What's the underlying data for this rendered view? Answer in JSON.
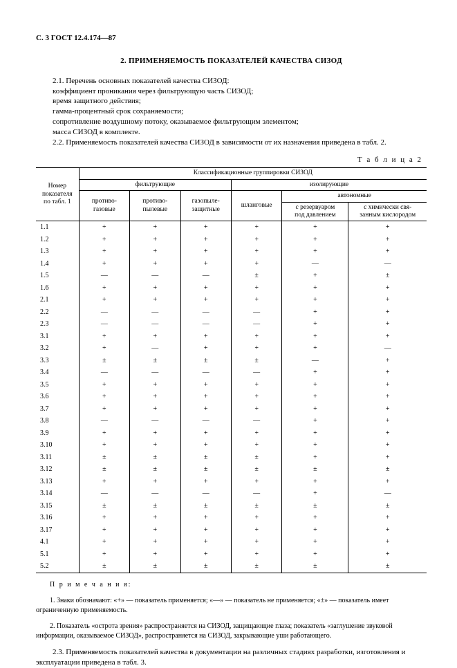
{
  "header": "С. 3 ГОСТ 12.4.174—87",
  "section_title": "2.  ПРИМЕНЯЕМОСТЬ ПОКАЗАТЕЛЕЙ КАЧЕСТВА СИЗОД",
  "p21_lead": "2.1. Перечень основных показателей качества СИЗОД:",
  "p21_items": [
    "коэффициент проникания через фильтрующую часть СИЗОД;",
    "время защитного действия;",
    "гамма-процентный срок сохраняемости;",
    "сопротивление воздушному потоку, оказываемое фильтрующим элементом;",
    "масса СИЗОД в комплекте."
  ],
  "p22": "2.2. Применяемость показателей качества СИЗОД в зависимости от их назначения приведена в табл. 2.",
  "table_label": "Т а б л и ц а  2",
  "thead": {
    "rowhead": "Номер\nпоказателя\nпо табл. 1",
    "top": "Классификационные группировки СИЗОД",
    "filt": "фильтрующие",
    "isol": "изолирующие",
    "c1": "противо-\nгазовые",
    "c2": "противо-\nпылевые",
    "c3": "газопыле-\nзащитные",
    "c4": "шланговые",
    "auto": "автономные",
    "c5": "с резервуаром\nпод давлением",
    "c6": "с химически свя-\nзанным кислородом"
  },
  "groups": [
    [
      {
        "n": "1.1",
        "v": [
          "+",
          "+",
          "+",
          "+",
          "+",
          "+"
        ]
      },
      {
        "n": "1.2",
        "v": [
          "+",
          "+",
          "+",
          "+",
          "+",
          "+"
        ]
      },
      {
        "n": "1.3",
        "v": [
          "+",
          "+",
          "+",
          "+",
          "+",
          "+"
        ]
      },
      {
        "n": "1.4",
        "v": [
          "+",
          "+",
          "+",
          "+",
          "—",
          "—"
        ]
      }
    ],
    [
      {
        "n": "1.5",
        "v": [
          "—",
          "—",
          "—",
          "±",
          "+",
          "±"
        ]
      },
      {
        "n": "1.6",
        "v": [
          "+",
          "+",
          "+",
          "+",
          "+",
          "+"
        ]
      },
      {
        "n": "2.1",
        "v": [
          "+",
          "+",
          "+",
          "+",
          "+",
          "+"
        ]
      },
      {
        "n": "2.2",
        "v": [
          "—",
          "—",
          "—",
          "—",
          "+",
          "+"
        ]
      }
    ],
    [
      {
        "n": "2.3",
        "v": [
          "—",
          "—",
          "—",
          "—",
          "+",
          "+"
        ]
      },
      {
        "n": "3.1",
        "v": [
          "+",
          "+",
          "+",
          "+",
          "+",
          "+"
        ]
      },
      {
        "n": "3.2",
        "v": [
          "+",
          "—",
          "+",
          "+",
          "+",
          "—"
        ]
      },
      {
        "n": "3.3",
        "v": [
          "±",
          "±",
          "±",
          "±",
          "—",
          "+"
        ]
      }
    ],
    [
      {
        "n": "3.4",
        "v": [
          "—",
          "—",
          "—",
          "—",
          "+",
          "+"
        ]
      },
      {
        "n": "3.5",
        "v": [
          "+",
          "+",
          "+",
          "+",
          "+",
          "+"
        ]
      },
      {
        "n": "3.6",
        "v": [
          "+",
          "+",
          "+",
          "+",
          "+",
          "+"
        ]
      },
      {
        "n": "3.7",
        "v": [
          "+",
          "+",
          "+",
          "+",
          "+",
          "+"
        ]
      }
    ],
    [
      {
        "n": "3.8",
        "v": [
          "—",
          "—",
          "—",
          "—",
          "+",
          "+"
        ]
      },
      {
        "n": "3.9",
        "v": [
          "+",
          "+",
          "+",
          "+",
          "+",
          "+"
        ]
      },
      {
        "n": "3.10",
        "v": [
          "+",
          "+",
          "+",
          "+",
          "+",
          "+"
        ]
      },
      {
        "n": "3.11",
        "v": [
          "±",
          "±",
          "±",
          "±",
          "+",
          "+"
        ]
      }
    ],
    [
      {
        "n": "3.12",
        "v": [
          "±",
          "±",
          "±",
          "±",
          "±",
          "±"
        ]
      },
      {
        "n": "3.13",
        "v": [
          "+",
          "+",
          "+",
          "+",
          "+",
          "+"
        ]
      },
      {
        "n": "3.14",
        "v": [
          "—",
          "—",
          "—",
          "—",
          "+",
          "—"
        ]
      },
      {
        "n": "3.15",
        "v": [
          "±",
          "±",
          "±",
          "±",
          "±",
          "±"
        ]
      }
    ],
    [
      {
        "n": "3.16",
        "v": [
          "+",
          "+",
          "+",
          "+",
          "+",
          "+"
        ]
      },
      {
        "n": "3.17",
        "v": [
          "+",
          "+",
          "+",
          "+",
          "+",
          "+"
        ]
      },
      {
        "n": "4.1",
        "v": [
          "+",
          "+",
          "+",
          "+",
          "+",
          "+"
        ]
      },
      {
        "n": "5.1",
        "v": [
          "+",
          "+",
          "+",
          "+",
          "+",
          "+"
        ]
      },
      {
        "n": "5.2",
        "v": [
          "±",
          "±",
          "±",
          "±",
          "±",
          "±"
        ]
      }
    ]
  ],
  "notes_title": "П р и м е ч а н и я:",
  "notes": [
    "1. Знаки обозначают: «+» — показатель применяется; «—» — показатель не применяется; «±» — показатель имеет ограниченную применяемость.",
    "2. Показатель «острота зрения» распространяется на СИЗОД, защищающие глаза; показатель «заглушение звуковой информации, оказываемое СИЗОД», распространяется на СИЗОД, закрывающие уши работающего."
  ],
  "p23": "2.3. Применяемость показателей качества в документации на различных стадиях разработки, изготовления и эксплуатации приведена в табл. 3."
}
